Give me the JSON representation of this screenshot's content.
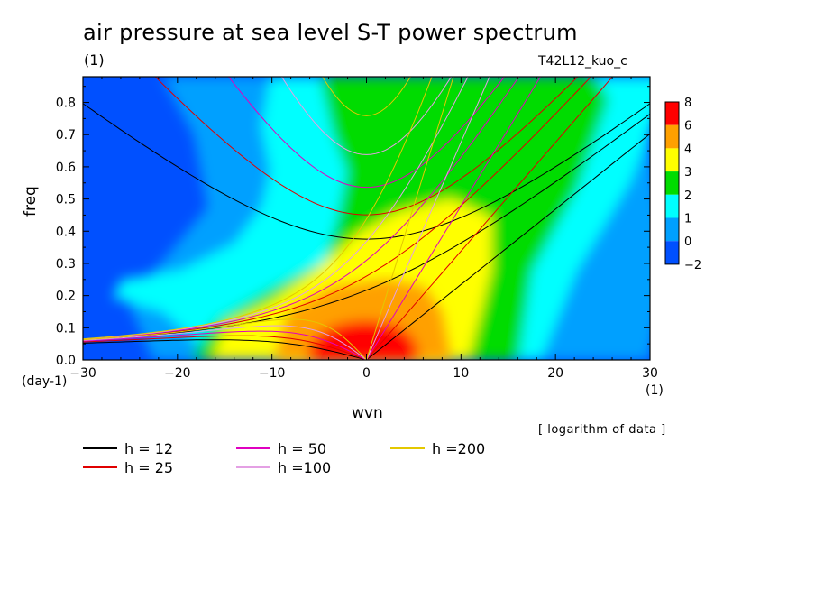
{
  "header": {
    "title": "air pressure at sea level S-T power spectrum",
    "subtitle": "(1)",
    "run_label": "T42L12_kuo_c",
    "note": "[ logarithm of data ]"
  },
  "chart_data": {
    "type": "heatmap",
    "title": "air pressure at sea level S-T power spectrum",
    "xlabel": "wvn",
    "ylabel": "freq",
    "x_unit": "(1)",
    "y_unit": "(day-1)",
    "xlim": [
      -30,
      30
    ],
    "ylim": [
      0,
      0.88
    ],
    "x_ticks": [
      -30,
      -20,
      -10,
      0,
      10,
      20,
      30
    ],
    "x_tick_labels": [
      "−30",
      "−20",
      "−10",
      "0",
      "10",
      "20",
      "30"
    ],
    "y_ticks": [
      0,
      0.1,
      0.2,
      0.3,
      0.4,
      0.5,
      0.6,
      0.7,
      0.8
    ],
    "y_tick_labels": [
      "0.0",
      "0.1",
      "0.2",
      "0.3",
      "0.4",
      "0.5",
      "0.6",
      "0.7",
      "0.8"
    ],
    "colorbar": {
      "levels": [
        "−2",
        "0",
        "1",
        "2",
        "3",
        "4",
        "6",
        "8"
      ],
      "colors": [
        "#0050ff",
        "#00a0ff",
        "#00ffff",
        "#00dc00",
        "#ffff00",
        "#ffa000",
        "#ff0000"
      ]
    },
    "dispersion_curves": [
      {
        "name": "h = 12",
        "h": 12,
        "color": "#000000"
      },
      {
        "name": "h = 25",
        "h": 25,
        "color": "#e00000"
      },
      {
        "name": "h = 50",
        "h": 50,
        "color": "#e000c0"
      },
      {
        "name": "h =100",
        "h": 100,
        "color": "#e4a0e4"
      },
      {
        "name": "h =200",
        "h": 200,
        "color": "#e4c800"
      }
    ]
  }
}
